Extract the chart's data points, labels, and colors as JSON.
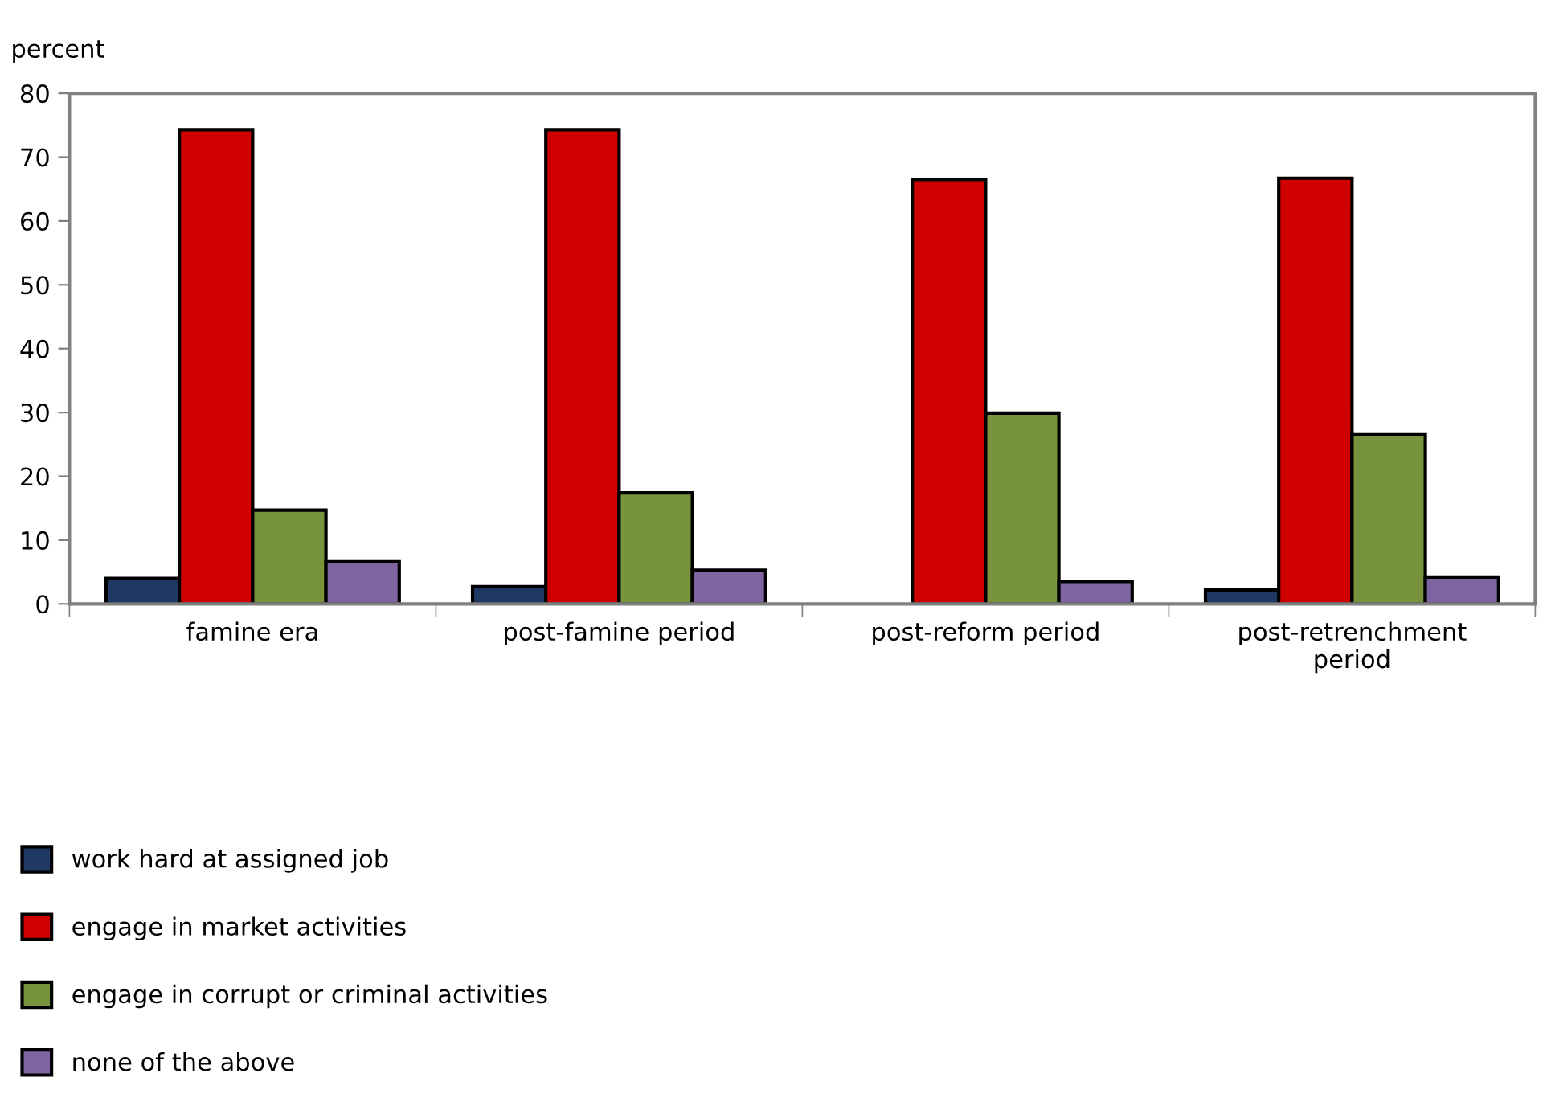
{
  "chart_data": {
    "type": "bar",
    "ylabel": "percent",
    "categories": [
      "famine era",
      "post-famine period",
      "post-reform period",
      "post-retrenchment\nperiod"
    ],
    "series": [
      {
        "name": "work hard at assigned job",
        "color": "#1f3864",
        "values": [
          4.0,
          2.7,
          null,
          2.2
        ]
      },
      {
        "name": "engage in market activities",
        "color": "#d00000",
        "values": [
          74.3,
          74.3,
          66.5,
          66.7
        ]
      },
      {
        "name": "engage in corrupt or criminal activities",
        "color": "#77933c",
        "values": [
          14.7,
          17.4,
          29.9,
          26.5
        ]
      },
      {
        "name": "none of the above",
        "color": "#8064a2",
        "values": [
          6.6,
          5.3,
          3.5,
          4.2
        ]
      }
    ],
    "ylim": [
      0,
      80
    ],
    "yticks": [
      0,
      10,
      20,
      30,
      40,
      50,
      60,
      70,
      80
    ],
    "grid": false,
    "legend": "bottom left"
  }
}
